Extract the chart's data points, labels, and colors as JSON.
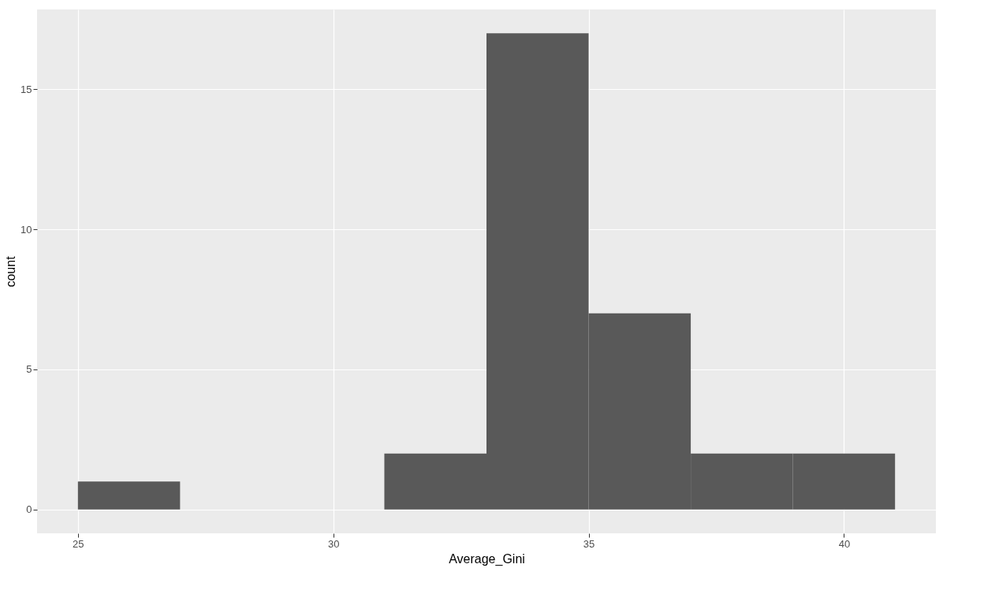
{
  "chart_data": {
    "type": "histogram",
    "xlabel": "Average_Gini",
    "ylabel": "count",
    "bins": [
      25,
      27,
      29,
      31,
      33,
      35,
      37,
      39,
      41
    ],
    "values": [
      1,
      0,
      0,
      2,
      17,
      7,
      2,
      2
    ],
    "color": "#595959",
    "xlim": [
      24.2,
      41.8
    ],
    "xticks": [
      25,
      30,
      35,
      40
    ],
    "ylim": [
      -0.85,
      17.85
    ],
    "yticks": [
      0,
      5,
      10,
      15
    ],
    "grid": true
  }
}
